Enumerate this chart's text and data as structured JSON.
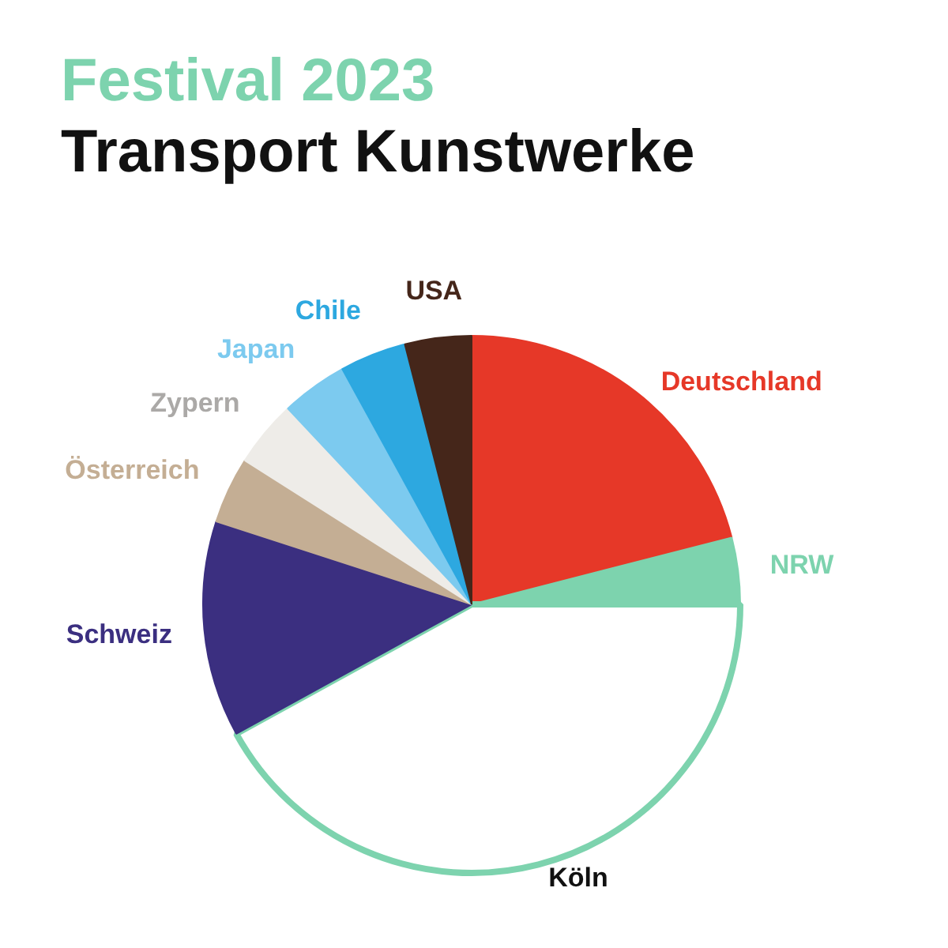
{
  "chart_data": {
    "type": "pie",
    "title": "Festival 2023",
    "subtitle": "Transport Kunstwerke",
    "categories": [
      "Deutschland",
      "NRW",
      "Köln",
      "Schweiz",
      "Österreich",
      "Zypern",
      "Japan",
      "Chile",
      "USA"
    ],
    "values": [
      21,
      4,
      42,
      13,
      4,
      4,
      4,
      4,
      4
    ],
    "colors": [
      "#e63828",
      "#7dd3ae",
      "#ffffff",
      "#3b2f80",
      "#c4ae94",
      "#eeece8",
      "#7ccaef",
      "#2da8e0",
      "#45261a"
    ]
  }
}
